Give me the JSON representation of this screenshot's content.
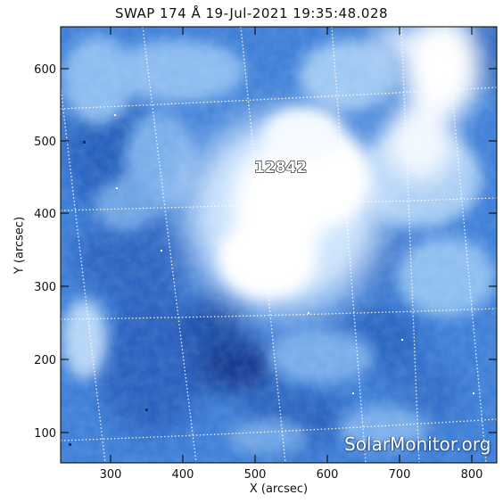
{
  "image": {
    "title": "SWAP 174 Å 19-Jul-2021 19:35:48.028",
    "x_axis_label": "X (arcsec)",
    "y_axis_label": "Y (arcsec)",
    "x_ticks": [
      "300",
      "400",
      "500",
      "600",
      "700",
      "800"
    ],
    "y_ticks": [
      "100",
      "200",
      "300",
      "400",
      "500",
      "600"
    ],
    "region_label": "12842",
    "watermark": "SolarMonitor.org",
    "colors": {
      "dark_blue": "#1c4fa8",
      "mid_blue": "#3d7fd6",
      "light_blue": "#8cbcf0",
      "bright_core": "#ffffff"
    }
  }
}
